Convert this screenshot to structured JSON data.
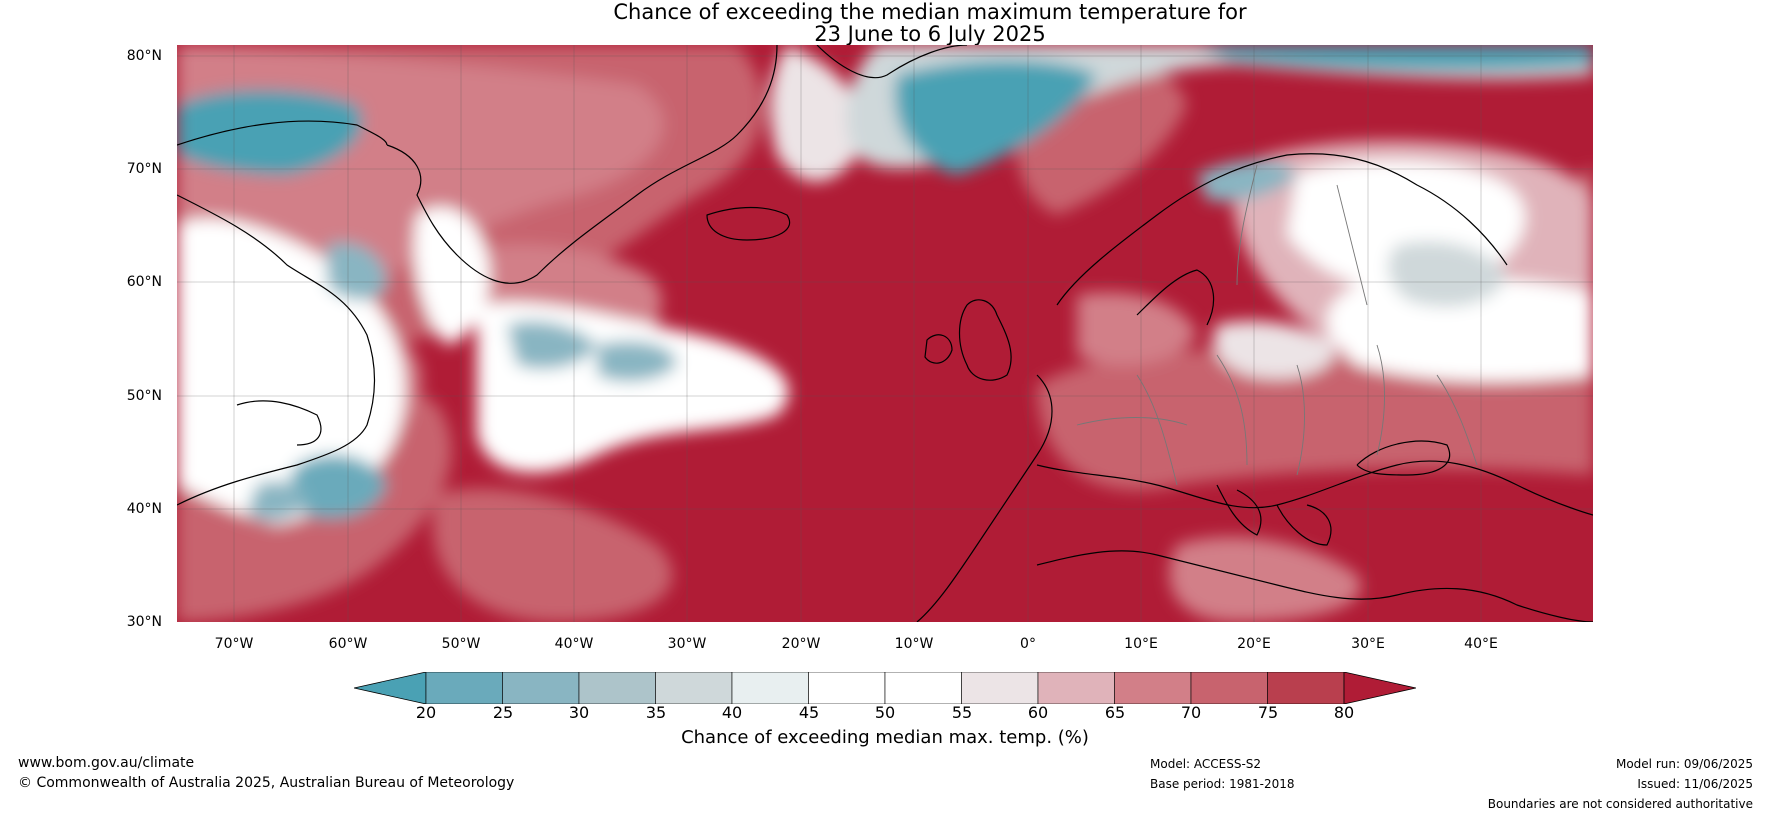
{
  "title_line_1": "Chance of exceeding the median maximum temperature for",
  "title_line_2": "23 June to 6 July 2025",
  "map": {
    "projection": "plate-carree",
    "lon_range": [
      -75,
      50
    ],
    "lat_range": [
      30,
      81
    ],
    "gridlines": true,
    "lat_ticks": [
      "80°N",
      "70°N",
      "60°N",
      "50°N",
      "40°N",
      "30°N"
    ],
    "lon_ticks": [
      "70°W",
      "60°W",
      "50°W",
      "40°W",
      "30°W",
      "20°W",
      "10°W",
      "0°",
      "10°E",
      "20°E",
      "30°E",
      "40°E"
    ]
  },
  "colorbar": {
    "ticks": [
      "20",
      "25",
      "30",
      "35",
      "40",
      "45",
      "50",
      "55",
      "60",
      "65",
      "70",
      "75",
      "80"
    ],
    "colors": [
      "#4aa1b4",
      "#6aaabb",
      "#89b5c2",
      "#adc4ca",
      "#cfd8da",
      "#e8eff0",
      "#ffffff",
      "#ffffff",
      "#ece4e6",
      "#e0b3ba",
      "#d27f88",
      "#c8636e",
      "#b93f4e",
      "#b01c36"
    ],
    "label": "Chance of exceeding median max. temp. (%)"
  },
  "footer": {
    "website": "www.bom.gov.au/climate",
    "copyright": "© Commonwealth of Australia 2025, Australian Bureau of Meteorology",
    "model": "Model: ACCESS-S2",
    "base_period": "Base period: 1981-2018",
    "model_run": "Model run: 09/06/2025",
    "issued": "Issued: 11/06/2025",
    "disclaimer": "Boundaries are not considered authoritative"
  }
}
